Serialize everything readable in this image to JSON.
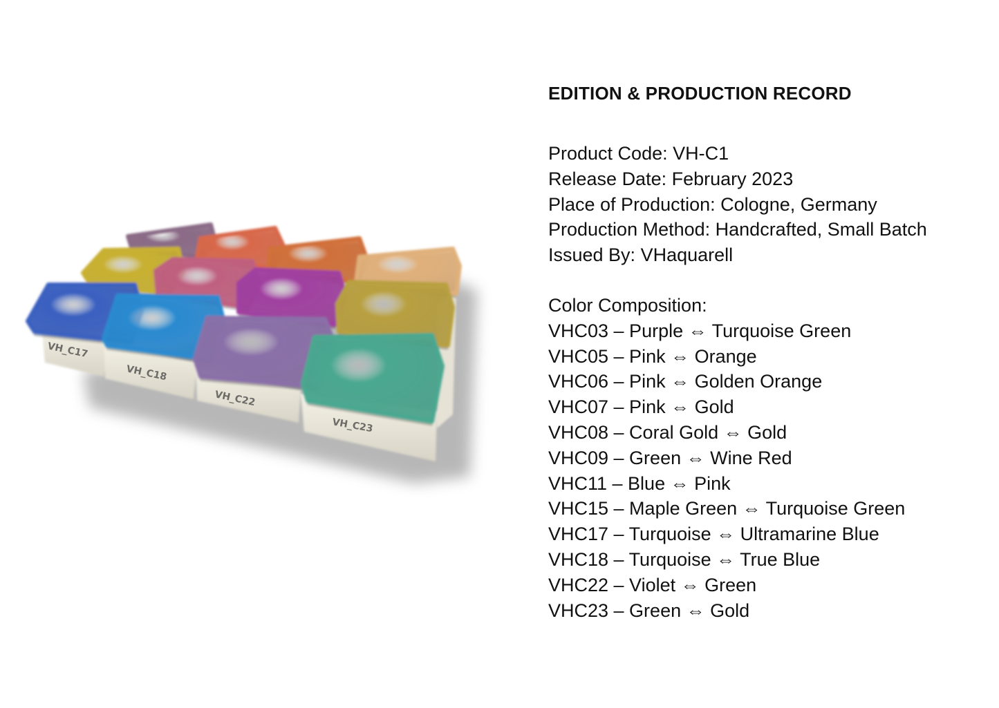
{
  "record": {
    "title": "EDITION & PRODUCTION RECORD",
    "details": [
      "Product Code: VH-C1",
      "Release Date: February 2023",
      "Place of Production: Cologne, Germany",
      "Production Method: Handcrafted, Small Batch",
      "Issued By: VHaquarell"
    ],
    "composition_heading": "Color Composition:",
    "colors": [
      "VHC03 – Purple ⇔ Turquoise Green",
      "VHC05 – Pink ⇔ Orange",
      "VHC06 – Pink ⇔ Golden Orange",
      "VHC07 – Pink ⇔ Gold",
      "VHC08 – Coral Gold ⇔ Gold",
      "VHC09 – Green ⇔ Wine Red",
      "VHC11 – Blue ⇔ Pink",
      "VHC15 – Maple Green ⇔ Turquoise Green",
      "VHC17 – Turquoise ⇔ Ultramarine Blue",
      "VHC18 – Turquoise ⇔ True Blue",
      "VHC22 – Violet ⇔ Green",
      "VHC23 – Green ⇔ Gold"
    ]
  },
  "photo": {
    "pan_labels": [
      "VH_C17",
      "VH_C18",
      "VH_C22",
      "VH_C23"
    ],
    "pan_colors": {
      "back": [
        "#8a6a86",
        "#d8684a",
        "#d0703a",
        "#e0b07a"
      ],
      "middle": [
        "#c8b030",
        "#c06080",
        "#a040a0",
        "#b8a040"
      ],
      "front": [
        "#3a60c0",
        "#2a8ad0",
        "#8a70a8",
        "#4aa890"
      ]
    }
  }
}
